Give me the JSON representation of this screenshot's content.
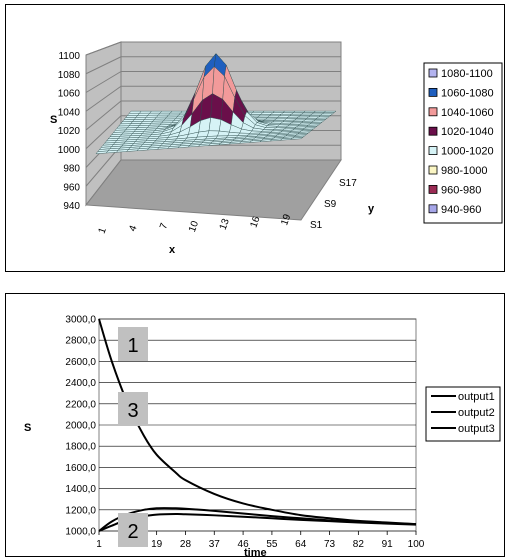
{
  "chart_data": [
    {
      "type": "surface",
      "title": "",
      "xlabel": "x",
      "ylabel": "y",
      "zlabel": "S",
      "zlim": [
        940,
        1100
      ],
      "z_ticks": [
        "940",
        "960",
        "980",
        "1000",
        "1020",
        "1040",
        "1060",
        "1080",
        "1100"
      ],
      "x_ticks": [
        "1",
        "4",
        "7",
        "10",
        "13",
        "16",
        "19"
      ],
      "y_ticks": [
        "S1",
        "S9",
        "S17"
      ],
      "peak": {
        "x": 10,
        "y": "S9",
        "value": 1090
      },
      "base_level": 1000,
      "legend": [
        {
          "label": "1080-1100",
          "color": "#b4b4f0"
        },
        {
          "label": "1060-1080",
          "color": "#1f5fbf"
        },
        {
          "label": "1040-1060",
          "color": "#f29a9a"
        },
        {
          "label": "1020-1040",
          "color": "#6a0f4a"
        },
        {
          "label": "1000-1020",
          "color": "#d6f3f6"
        },
        {
          "label": "980-1000",
          "color": "#fbf6c4"
        },
        {
          "label": "960-980",
          "color": "#9a2b54"
        },
        {
          "label": "940-960",
          "color": "#a6a6e8"
        }
      ],
      "legend_position": "right"
    },
    {
      "type": "line",
      "title": "",
      "xlabel": "time",
      "ylabel": "S",
      "x_ticks": [
        "1",
        "10",
        "19",
        "28",
        "37",
        "46",
        "55",
        "64",
        "73",
        "82",
        "91",
        "100"
      ],
      "y_ticks": [
        "1000,0",
        "1200,0",
        "1400,0",
        "1600,0",
        "1800,0",
        "2000,0",
        "2200,0",
        "2400,0",
        "2600,0",
        "2800,0",
        "3000,0"
      ],
      "ylim": [
        1000,
        3000
      ],
      "xlim": [
        1,
        100
      ],
      "grid": "horizontal",
      "legend_position": "right",
      "series": [
        {
          "name": "output1",
          "x": [
            1,
            5,
            10,
            15,
            19,
            25,
            28,
            37,
            46,
            55,
            64,
            73,
            82,
            91,
            100
          ],
          "values": [
            3000,
            2600,
            2200,
            1900,
            1720,
            1550,
            1480,
            1350,
            1260,
            1200,
            1150,
            1120,
            1095,
            1080,
            1065
          ]
        },
        {
          "name": "output2",
          "x": [
            1,
            5,
            10,
            15,
            19,
            25,
            28,
            37,
            46,
            55,
            64,
            73,
            82,
            91,
            100
          ],
          "values": [
            1000,
            1090,
            1160,
            1200,
            1215,
            1215,
            1210,
            1190,
            1165,
            1140,
            1120,
            1100,
            1085,
            1075,
            1065
          ]
        },
        {
          "name": "output3",
          "x": [
            1,
            5,
            10,
            15,
            19,
            25,
            28,
            37,
            46,
            55,
            64,
            73,
            82,
            91,
            100
          ],
          "values": [
            1000,
            1050,
            1110,
            1140,
            1155,
            1160,
            1158,
            1148,
            1135,
            1120,
            1105,
            1093,
            1080,
            1070,
            1060
          ]
        }
      ],
      "annotations": [
        "1",
        "2",
        "3"
      ]
    }
  ]
}
